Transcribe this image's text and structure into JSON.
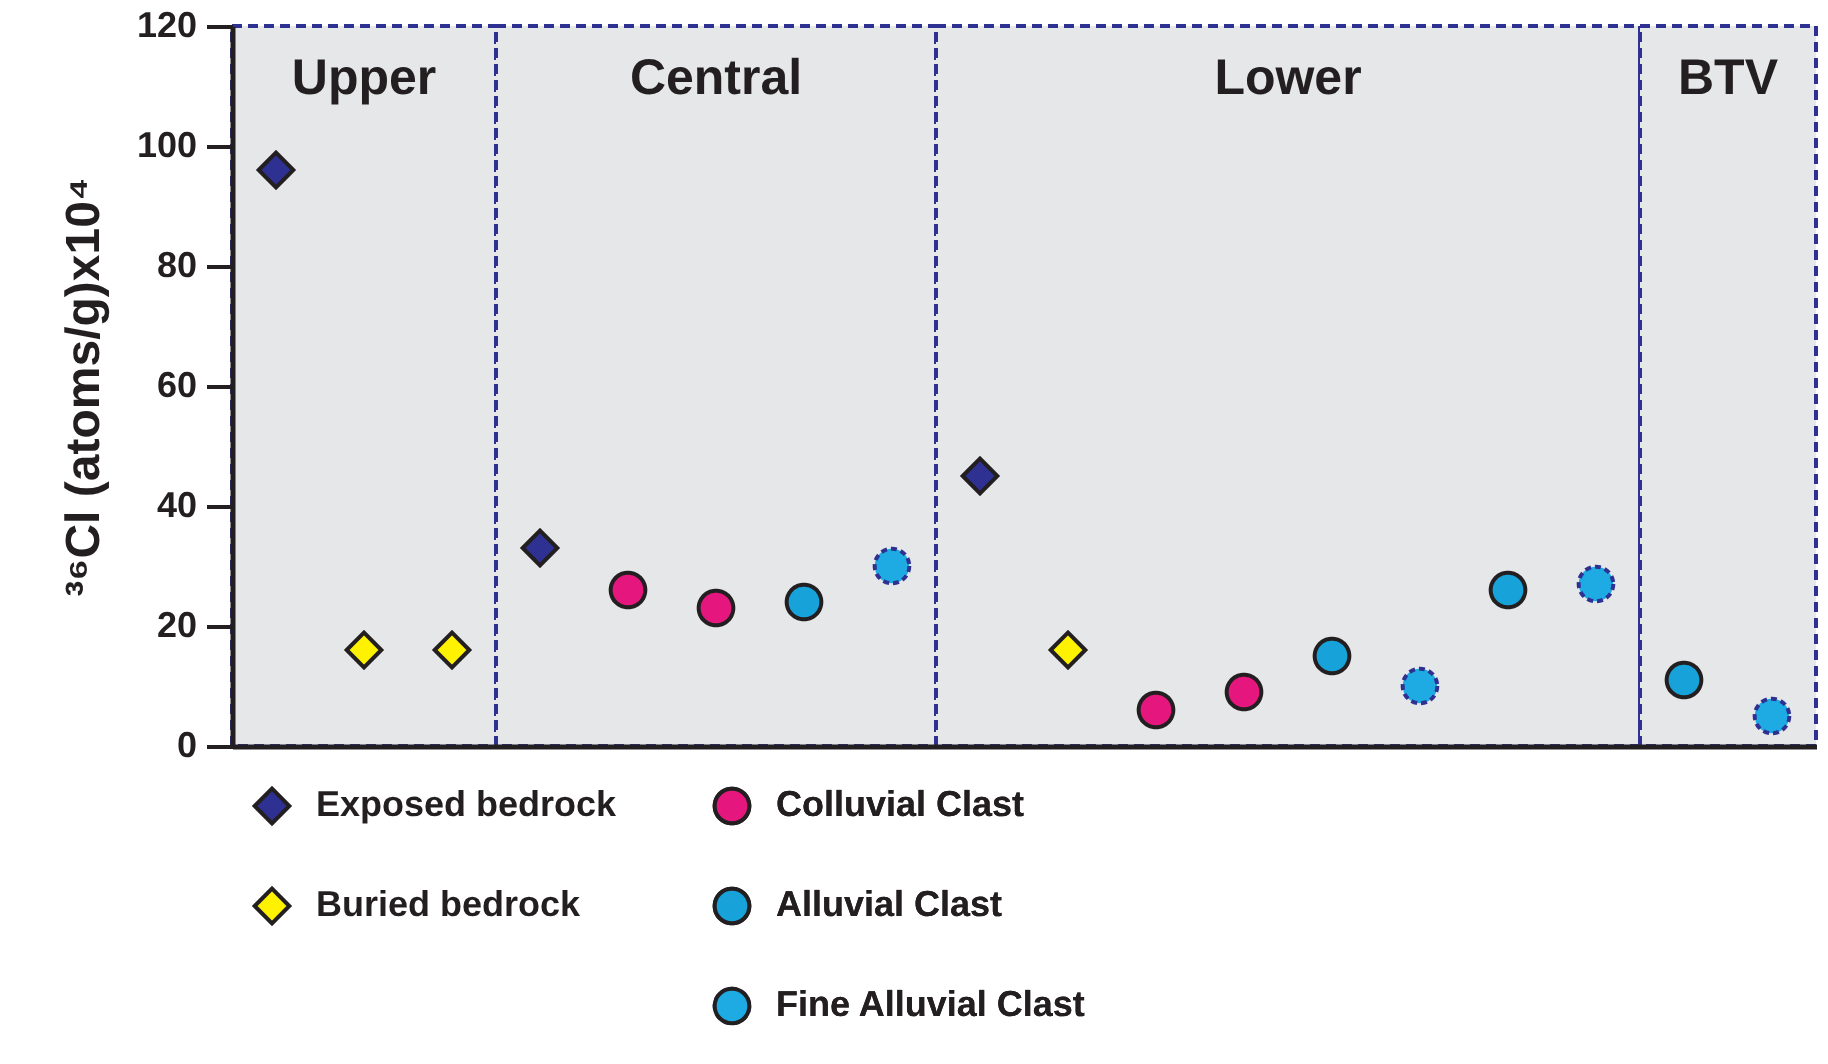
{
  "chart_data": {
    "type": "scatter",
    "categories": [
      null,
      null,
      null,
      null,
      null,
      null,
      null,
      null,
      null,
      null,
      null,
      null,
      null,
      null,
      null,
      null,
      null,
      null
    ],
    "ylabel": "³⁶Cl (atoms/g)x10⁴",
    "ylim": [
      0,
      120
    ],
    "yticks": [
      0,
      20,
      40,
      60,
      80,
      100,
      120
    ],
    "tick_labels": "y",
    "legend": "bottom left",
    "annotations": [
      "Upper",
      "Central",
      "Lower",
      "BTV"
    ],
    "series": [
      {
        "name": "Exposed bedrock",
        "color": "#2e3192",
        "marker": "diamond",
        "values": [
          96,
          null,
          null,
          33,
          null,
          null,
          null,
          null,
          45,
          null,
          null,
          null,
          null,
          null,
          null,
          null,
          null,
          null
        ]
      },
      {
        "name": "Buried bedrock",
        "color": "#fff200",
        "marker": "diamond",
        "values": [
          null,
          16,
          16,
          null,
          null,
          null,
          null,
          null,
          null,
          16,
          null,
          null,
          null,
          null,
          null,
          null,
          null,
          null
        ]
      },
      {
        "name": "Colluvial Clast",
        "color": "#e5177e",
        "marker": "circle",
        "values": [
          null,
          null,
          null,
          null,
          26,
          23,
          null,
          null,
          null,
          null,
          6,
          9,
          null,
          null,
          null,
          null,
          null,
          null
        ]
      },
      {
        "name": "Alluvial Clast",
        "color": "#17a2da",
        "marker": "circle",
        "values": [
          null,
          null,
          null,
          null,
          null,
          null,
          24,
          null,
          null,
          null,
          null,
          null,
          15,
          null,
          26,
          null,
          11,
          null
        ]
      },
      {
        "name": "Fine Alluvial Clast",
        "color": "#1eaae3",
        "marker": "circle",
        "line_style": "dashed",
        "values": [
          null,
          null,
          null,
          null,
          null,
          null,
          null,
          30,
          null,
          null,
          null,
          null,
          null,
          10,
          null,
          27,
          null,
          5
        ]
      }
    ]
  }
}
